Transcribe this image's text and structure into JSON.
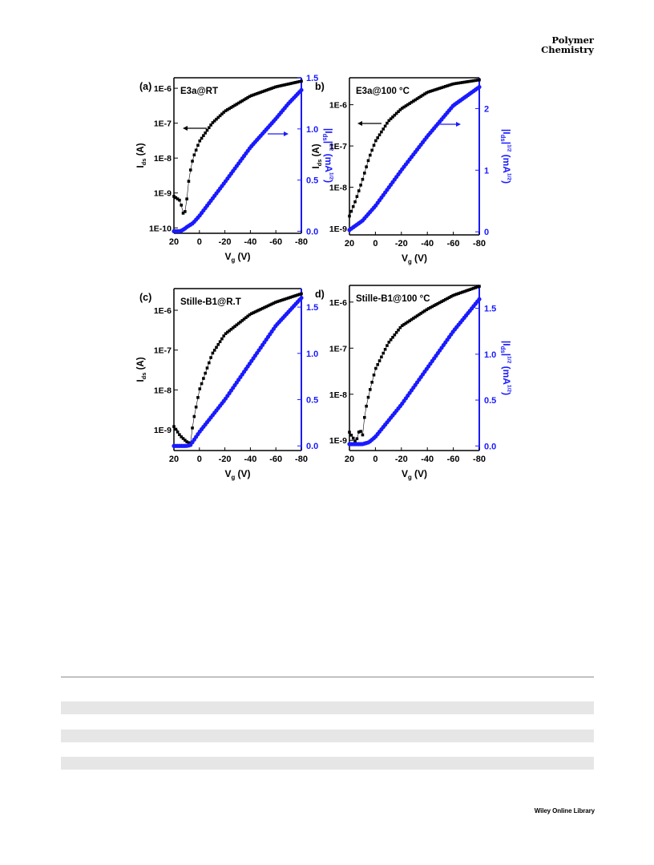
{
  "header": {
    "journal_line1": "Polymer",
    "journal_line2": "Chemistry"
  },
  "footer": {
    "publisher": "Wiley Online Library"
  },
  "colors": {
    "left_series": "#000000",
    "right_series": "#1a1aff"
  },
  "chart_data": [
    {
      "type": "scatter",
      "panel_label": "(a)",
      "inset_text": "E3a@RT",
      "xlabel": "Vg (V)",
      "ylabel_left": "Ids (A)",
      "ylabel_right": "|Ids|1/2 (mA1/2)",
      "x_ticks": [
        "20",
        "0",
        "-20",
        "-40",
        "-60",
        "-80"
      ],
      "xlim": [
        20,
        -80
      ],
      "yleft_scale": "log",
      "yleft_lim": [
        7e-11,
        2e-06
      ],
      "yleft_ticks": [
        "1E-10",
        "1E-9",
        "1E-8",
        "1E-7",
        "1E-6"
      ],
      "yright_lim": [
        -0.02,
        1.5
      ],
      "yright_ticks": [
        "0.0",
        "0.5",
        "1.0",
        "1.5"
      ],
      "series": [
        {
          "axis": "left",
          "x": [
            20,
            15,
            12,
            10,
            8,
            5,
            0,
            -10,
            -20,
            -40,
            -60,
            -80
          ],
          "y": [
            8e-10,
            6e-10,
            2e-10,
            6e-10,
            3e-09,
            1e-08,
            3e-08,
            1e-07,
            2.2e-07,
            6e-07,
            1.1e-06,
            1.6e-06
          ]
        },
        {
          "axis": "right",
          "x": [
            20,
            15,
            12,
            10,
            5,
            0,
            -20,
            -40,
            -60,
            -70,
            -80
          ],
          "y": [
            0.0,
            0.0,
            0.02,
            0.04,
            0.08,
            0.15,
            0.48,
            0.82,
            1.1,
            1.25,
            1.38
          ]
        }
      ],
      "arrows": [
        {
          "direction": "left",
          "color": "black"
        },
        {
          "direction": "right",
          "color": "blue"
        }
      ]
    },
    {
      "type": "scatter",
      "panel_label": "b)",
      "inset_text": "E3a@100 °C",
      "xlabel": "Vg (V)",
      "ylabel_left": "Ids (A)",
      "ylabel_right": "|Ids|1/2 (mA1/2)",
      "x_ticks": [
        "20",
        "0",
        "-20",
        "-40",
        "-60",
        "-80"
      ],
      "xlim": [
        20,
        -80
      ],
      "yleft_scale": "log",
      "yleft_lim": [
        7e-10,
        4.5e-06
      ],
      "yleft_ticks": [
        "1E-9",
        "1E-8",
        "1E-7",
        "1E-6"
      ],
      "yright_lim": [
        -0.05,
        2.5
      ],
      "yright_ticks": [
        "0",
        "1",
        "2"
      ],
      "series": [
        {
          "axis": "left",
          "x": [
            20,
            15,
            10,
            5,
            0,
            -10,
            -20,
            -40,
            -60,
            -80
          ],
          "y": [
            2e-09,
            5e-09,
            1.5e-08,
            5e-08,
            1.3e-07,
            4e-07,
            8e-07,
            2e-06,
            3.2e-06,
            4e-06
          ]
        },
        {
          "axis": "right",
          "x": [
            20,
            10,
            0,
            -20,
            -40,
            -60,
            -70,
            -80
          ],
          "y": [
            0.03,
            0.18,
            0.42,
            1.0,
            1.55,
            2.05,
            2.2,
            2.35
          ]
        }
      ],
      "arrows": [
        {
          "direction": "left",
          "color": "black"
        },
        {
          "direction": "right",
          "color": "blue"
        }
      ]
    },
    {
      "type": "scatter",
      "panel_label": "(c)",
      "inset_text": "Stille-B1@R.T",
      "xlabel": "Vg (V)",
      "ylabel_left": "Ids (A)",
      "ylabel_right": "",
      "x_ticks": [
        "20",
        "0",
        "-20",
        "-40",
        "-60",
        "-80"
      ],
      "xlim": [
        20,
        -80
      ],
      "yleft_scale": "log",
      "yleft_lim": [
        3e-10,
        3.5e-06
      ],
      "yleft_ticks": [
        "1E-9",
        "1E-8",
        "1E-7",
        "1E-6"
      ],
      "yright_lim": [
        -0.05,
        1.7
      ],
      "yright_ticks": [
        "0.0",
        "0.5",
        "1.0",
        "1.5"
      ],
      "series": [
        {
          "axis": "left",
          "x": [
            20,
            15,
            10,
            7,
            5,
            0,
            -10,
            -20,
            -40,
            -60,
            -80
          ],
          "y": [
            1.2e-09,
            7e-10,
            5e-10,
            4.5e-10,
            1.5e-09,
            1e-08,
            8e-08,
            2.5e-07,
            8e-07,
            1.6e-06,
            2.6e-06
          ]
        },
        {
          "axis": "right",
          "x": [
            20,
            10,
            7,
            5,
            0,
            -20,
            -40,
            -60,
            -80
          ],
          "y": [
            0.0,
            0.0,
            0.01,
            0.05,
            0.15,
            0.5,
            0.9,
            1.3,
            1.6
          ]
        }
      ]
    },
    {
      "type": "scatter",
      "panel_label": "d)",
      "inset_text": "Stille-B1@100 °C",
      "xlabel": "Vg (V)",
      "ylabel_left": "",
      "ylabel_right": "|Ids|1/2 (mA1/2)",
      "x_ticks": [
        "20",
        "0",
        "-20",
        "-40",
        "-60",
        "-80"
      ],
      "xlim": [
        20,
        -80
      ],
      "yleft_scale": "log",
      "yleft_lim": [
        6e-10,
        2.3e-06
      ],
      "yleft_ticks": [
        "1E-9",
        "1E-8",
        "1E-7",
        "1E-6"
      ],
      "yright_lim": [
        -0.05,
        1.75
      ],
      "yright_ticks": [
        "0.0",
        "0.5",
        "1.0",
        "1.5"
      ],
      "series": [
        {
          "axis": "left",
          "x": [
            20,
            15,
            12,
            10,
            8,
            5,
            0,
            -10,
            -20,
            -40,
            -60,
            -80
          ],
          "y": [
            1.5e-09,
            9e-10,
            1.8e-09,
            1.2e-09,
            4e-09,
            1e-08,
            3.5e-08,
            1.3e-07,
            3e-07,
            7e-07,
            1.4e-06,
            2.2e-06
          ]
        },
        {
          "axis": "right",
          "x": [
            20,
            10,
            5,
            0,
            -20,
            -40,
            -60,
            -80
          ],
          "y": [
            0.02,
            0.02,
            0.04,
            0.1,
            0.45,
            0.85,
            1.25,
            1.6
          ]
        }
      ]
    }
  ]
}
